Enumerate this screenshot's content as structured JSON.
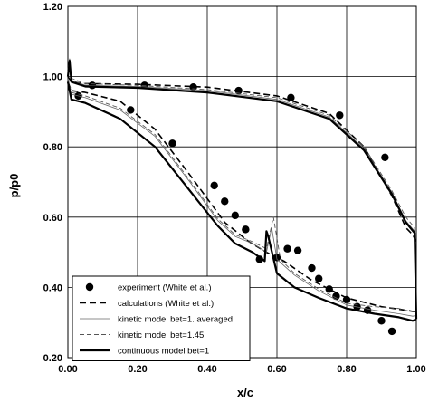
{
  "chart_data": {
    "type": "line",
    "xlabel": "x/c",
    "ylabel": "p/p0",
    "xlim": [
      0,
      1
    ],
    "ylim": [
      0.2,
      1.2
    ],
    "x_ticks": [
      "0.00",
      "0.20",
      "0.40",
      "0.60",
      "0.80",
      "1.00"
    ],
    "y_ticks": [
      "0.20",
      "0.40",
      "0.60",
      "0.80",
      "1.00",
      "1.20"
    ],
    "grid": true,
    "legend_position": "bottom-left",
    "series": [
      {
        "name": "experiment (White et al.)",
        "style": "markers",
        "x": [
          0.03,
          0.07,
          0.18,
          0.22,
          0.3,
          0.36,
          0.42,
          0.45,
          0.48,
          0.49,
          0.51,
          0.55,
          0.6,
          0.63,
          0.64,
          0.66,
          0.7,
          0.72,
          0.75,
          0.77,
          0.78,
          0.8,
          0.83,
          0.86,
          0.9,
          0.91,
          0.93
        ],
        "y": [
          0.945,
          0.975,
          0.905,
          0.975,
          0.81,
          0.97,
          0.69,
          0.645,
          0.605,
          0.96,
          0.565,
          0.48,
          0.485,
          0.51,
          0.94,
          0.505,
          0.455,
          0.425,
          0.395,
          0.375,
          0.89,
          0.365,
          0.345,
          0.335,
          0.305,
          0.77,
          0.275
        ]
      },
      {
        "name": "calculations (White et al.)",
        "style": "dashed",
        "segments": [
          {
            "x": [
              0.0,
              0.01,
              0.05,
              0.2,
              0.4,
              0.6,
              0.75,
              0.85,
              0.93,
              0.97,
              0.99,
              1.0
            ],
            "y": [
              1.0,
              0.985,
              0.98,
              0.978,
              0.97,
              0.945,
              0.895,
              0.8,
              0.66,
              0.57,
              0.55,
              0.53
            ]
          },
          {
            "x": [
              0.0,
              0.01,
              0.05,
              0.15,
              0.25,
              0.35,
              0.45,
              0.52,
              0.57,
              0.62,
              0.7,
              0.8,
              0.9,
              0.97,
              1.0
            ],
            "y": [
              0.985,
              0.96,
              0.955,
              0.93,
              0.85,
              0.72,
              0.585,
              0.53,
              0.5,
              0.475,
              0.42,
              0.37,
              0.345,
              0.335,
              0.33
            ]
          }
        ]
      },
      {
        "name": "kinetic model bet=1. averaged",
        "style": "thin",
        "segments": [
          {
            "x": [
              0.0,
              0.005,
              0.01,
              0.05,
              0.2,
              0.4,
              0.6,
              0.75,
              0.85,
              0.93,
              0.97,
              0.995,
              1.0
            ],
            "y": [
              1.01,
              1.05,
              0.99,
              0.975,
              0.972,
              0.96,
              0.935,
              0.885,
              0.795,
              0.67,
              0.59,
              0.56,
              0.34
            ]
          },
          {
            "x": [
              0.0,
              0.01,
              0.05,
              0.15,
              0.25,
              0.35,
              0.43,
              0.48,
              0.53,
              0.57,
              0.585,
              0.6,
              0.65,
              0.72,
              0.8,
              0.88,
              0.95,
              0.99,
              1.0
            ],
            "y": [
              0.99,
              0.95,
              0.94,
              0.905,
              0.83,
              0.7,
              0.59,
              0.545,
              0.525,
              0.5,
              0.57,
              0.48,
              0.435,
              0.39,
              0.35,
              0.335,
              0.325,
              0.318,
              0.32
            ]
          }
        ]
      },
      {
        "name": "kinetic model bet=1.45",
        "style": "dashed-thin",
        "segments": [
          {
            "x": [
              0.0,
              0.005,
              0.01,
              0.05,
              0.2,
              0.4,
              0.6,
              0.75,
              0.85,
              0.93,
              0.97,
              0.995,
              1.0
            ],
            "y": [
              1.02,
              1.05,
              0.995,
              0.98,
              0.975,
              0.963,
              0.94,
              0.89,
              0.8,
              0.675,
              0.6,
              0.57,
              0.35
            ]
          },
          {
            "x": [
              0.0,
              0.01,
              0.05,
              0.15,
              0.25,
              0.35,
              0.43,
              0.48,
              0.53,
              0.57,
              0.59,
              0.61,
              0.65,
              0.72,
              0.8,
              0.88,
              0.95,
              0.99,
              1.0
            ],
            "y": [
              0.995,
              0.955,
              0.945,
              0.91,
              0.835,
              0.705,
              0.595,
              0.55,
              0.53,
              0.51,
              0.6,
              0.48,
              0.44,
              0.395,
              0.355,
              0.345,
              0.34,
              0.33,
              0.33
            ]
          }
        ]
      },
      {
        "name": "continuous model bet=1",
        "style": "bold",
        "segments": [
          {
            "x": [
              0.0,
              0.005,
              0.01,
              0.05,
              0.2,
              0.4,
              0.6,
              0.75,
              0.85,
              0.93,
              0.97,
              0.995,
              1.0
            ],
            "y": [
              1.0,
              1.045,
              0.985,
              0.972,
              0.968,
              0.955,
              0.93,
              0.88,
              0.79,
              0.665,
              0.585,
              0.555,
              0.31
            ]
          },
          {
            "x": [
              0.0,
              0.01,
              0.05,
              0.15,
              0.25,
              0.35,
              0.43,
              0.48,
              0.53,
              0.565,
              0.57,
              0.575,
              0.6,
              0.65,
              0.72,
              0.8,
              0.88,
              0.95,
              0.99,
              1.0
            ],
            "y": [
              0.985,
              0.935,
              0.925,
              0.88,
              0.8,
              0.675,
              0.575,
              0.525,
              0.5,
              0.475,
              0.56,
              0.545,
              0.44,
              0.4,
              0.37,
              0.34,
              0.325,
              0.315,
              0.305,
              0.31
            ]
          }
        ]
      }
    ]
  }
}
